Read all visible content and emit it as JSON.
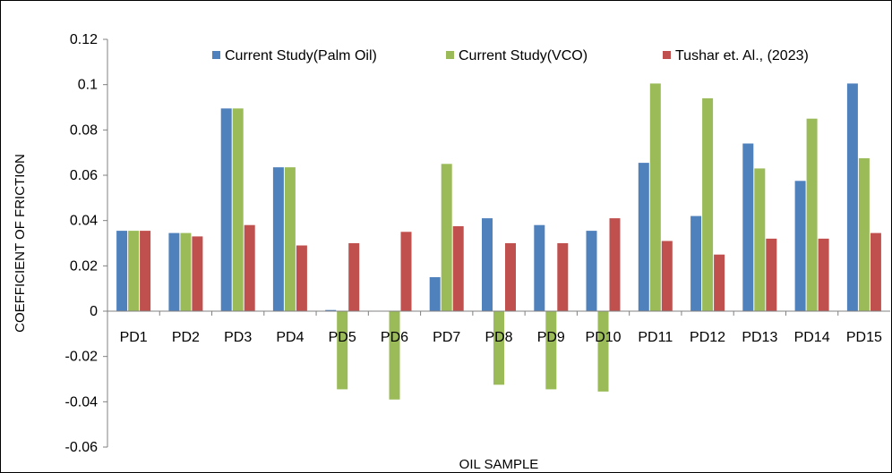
{
  "chart_data": {
    "type": "bar",
    "title": "",
    "xlabel": "OIL SAMPLE",
    "ylabel": "COEFFICIENT OF FRICTION",
    "ylim": [
      -0.06,
      0.12
    ],
    "yticks": [
      "0.12",
      "0.1",
      "0.08",
      "0.06",
      "0.04",
      "0.02",
      "0",
      "-0.02",
      "-0.04",
      "-0.06"
    ],
    "ytick_values": [
      0.12,
      0.1,
      0.08,
      0.06,
      0.04,
      0.02,
      0,
      -0.02,
      -0.04,
      -0.06
    ],
    "grid": false,
    "legend_position": "top",
    "categories": [
      "PD1",
      "PD2",
      "PD3",
      "PD4",
      "PD5",
      "PD6",
      "PD7",
      "PD8",
      "PD9",
      "PD10",
      "PD11",
      "PD12",
      "PD13",
      "PD14",
      "PD15"
    ],
    "series": [
      {
        "name": "Current Study(Palm Oil)",
        "color": "#4f81bd",
        "values": [
          0.0355,
          0.0345,
          0.0895,
          0.0635,
          0.0005,
          0,
          0.015,
          0.041,
          0.038,
          0.0355,
          0.0655,
          0.042,
          0.074,
          0.0575,
          0.1005
        ]
      },
      {
        "name": "Current Study(VCO)",
        "color": "#9bbb59",
        "values": [
          0.0355,
          0.0345,
          0.0895,
          0.0635,
          -0.0345,
          -0.039,
          0.065,
          -0.0325,
          -0.0345,
          -0.0355,
          0.1005,
          0.094,
          0.063,
          0.085,
          0.0675
        ]
      },
      {
        "name": "Tushar et. Al., (2023)",
        "color": "#c0504d",
        "values": [
          0.0355,
          0.033,
          0.038,
          0.029,
          0.03,
          0.035,
          0.0375,
          0.03,
          0.03,
          0.041,
          0.031,
          0.025,
          0.032,
          0.032,
          0.0345
        ]
      }
    ]
  }
}
